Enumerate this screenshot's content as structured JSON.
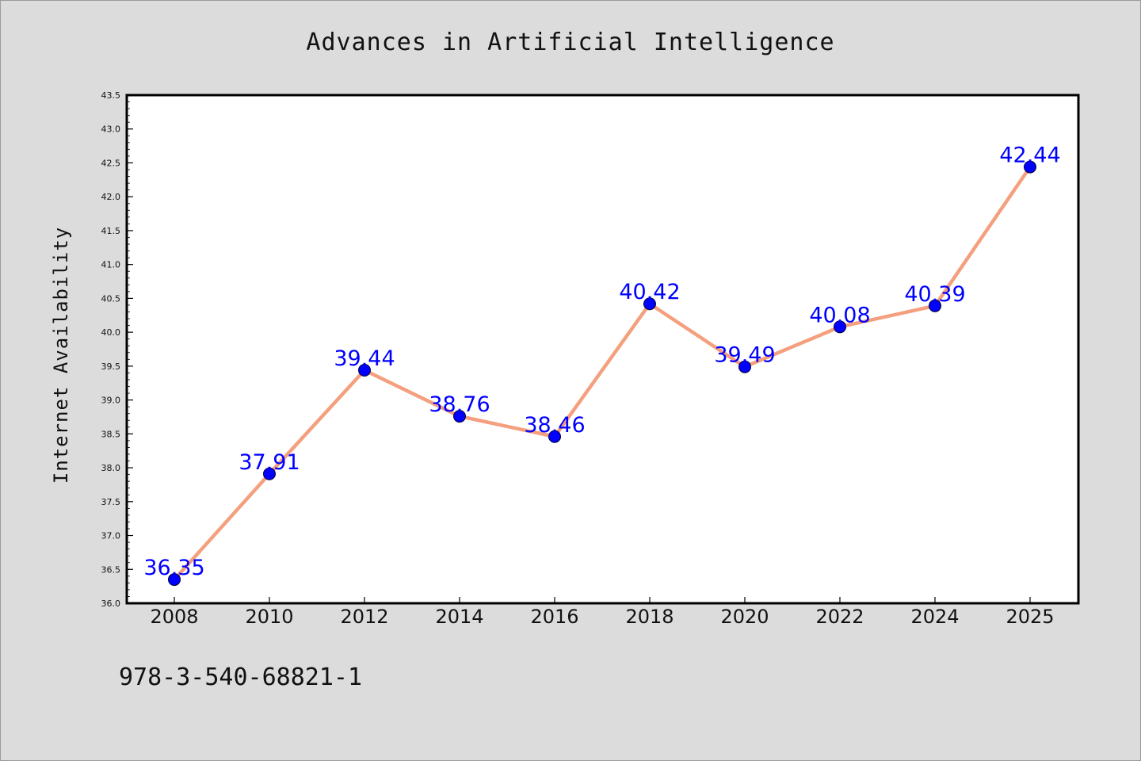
{
  "chart_data": {
    "type": "line",
    "title": "Advances in Artificial Intelligence",
    "ylabel": "Internet Availability",
    "xlabel": "",
    "categories": [
      "2008",
      "2010",
      "2012",
      "2014",
      "2016",
      "2018",
      "2020",
      "2022",
      "2024",
      "2025"
    ],
    "series": [
      {
        "values": [
          36.35,
          37.91,
          39.44,
          38.76,
          38.46,
          40.42,
          39.49,
          40.08,
          40.39,
          42.44
        ]
      }
    ],
    "data_labels": [
      "36.35",
      "37.91",
      "39.44",
      "38.76",
      "38.46",
      "40.42",
      "39.49",
      "40.08",
      "40.39",
      "42.44"
    ],
    "ylim": [
      36.0,
      43.5
    ],
    "ytick_step": 0.5,
    "yticks": [
      "36.0",
      "36.5",
      "37.0",
      "37.5",
      "38.0",
      "38.5",
      "39.0",
      "39.5",
      "40.0",
      "40.5",
      "41.0",
      "41.5",
      "42.0",
      "42.5",
      "43.0",
      "43.5"
    ],
    "grid": false,
    "legend": "none"
  },
  "colors": {
    "background": "#dcdcdc",
    "plot_background": "#ffffff",
    "line": "#f4a07e",
    "marker": "#0000ff",
    "data_label": "#0000ff",
    "text": "#111111"
  },
  "footer_text": "978-3-540-68821-1"
}
